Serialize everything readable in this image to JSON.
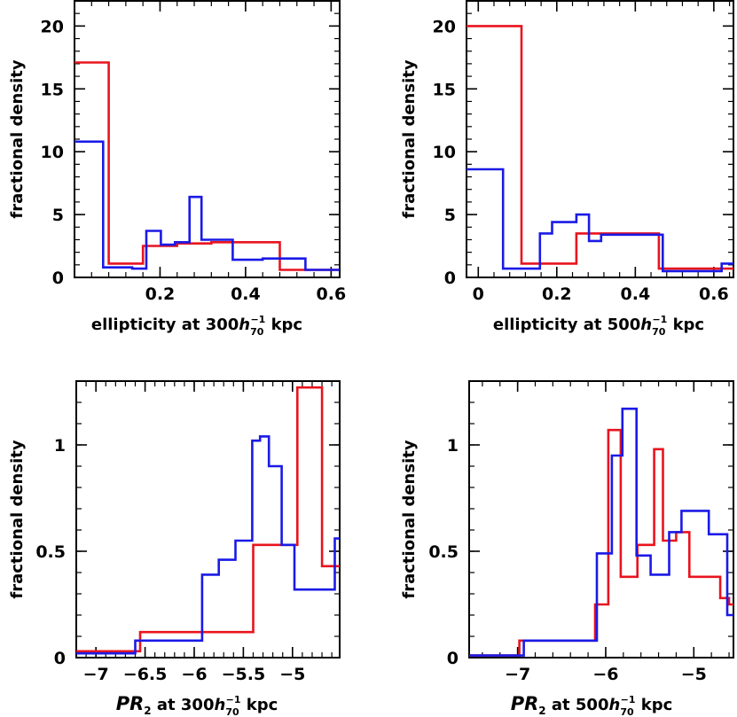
{
  "chart_data": [
    {
      "id": "ellip300",
      "type": "histogram-step",
      "xlabel_parts": [
        "ellipticity at 300",
        "h",
        "70",
        "−1",
        " kpc"
      ],
      "ylabel": "fractional density",
      "xlim": [
        0.0,
        0.62
      ],
      "ylim": [
        0,
        22
      ],
      "xticks": [
        0.2,
        0.4,
        0.6
      ],
      "xtick_labels": [
        "0.2",
        "0.4",
        "0.6"
      ],
      "yticks": [
        0,
        5,
        10,
        15,
        20
      ],
      "ytick_labels": [
        "0",
        "5",
        "10",
        "15",
        "20"
      ],
      "series": [
        {
          "color": "#e8141e",
          "edges": [
            0.0,
            0.08,
            0.16,
            0.24,
            0.32,
            0.4,
            0.48,
            0.62
          ],
          "values": [
            17.1,
            1.1,
            2.5,
            2.7,
            2.8,
            2.8,
            0.6
          ]
        },
        {
          "color": "#1a1ae6",
          "edges": [
            0.0,
            0.067,
            0.135,
            0.168,
            0.202,
            0.235,
            0.269,
            0.297,
            0.37,
            0.44,
            0.54,
            0.62
          ],
          "values": [
            10.8,
            0.8,
            0.7,
            3.7,
            2.6,
            2.8,
            6.4,
            3.0,
            1.4,
            1.5,
            0.6
          ]
        }
      ]
    },
    {
      "id": "ellip500",
      "type": "histogram-step",
      "xlabel_parts": [
        "ellipticity at 500",
        "h",
        "70",
        "−1",
        " kpc"
      ],
      "ylabel": "fractional density",
      "xlim": [
        -0.03,
        0.65
      ],
      "ylim": [
        0,
        22
      ],
      "xticks": [
        0,
        0.2,
        0.4,
        0.6
      ],
      "xtick_labels": [
        "0",
        "0.2",
        "0.4",
        "0.6"
      ],
      "yticks": [
        0,
        5,
        10,
        15,
        20
      ],
      "ytick_labels": [
        "0",
        "5",
        "10",
        "15",
        "20"
      ],
      "series": [
        {
          "color": "#e8141e",
          "edges": [
            -0.03,
            0.11,
            0.25,
            0.46,
            0.65
          ],
          "values": [
            20.0,
            1.1,
            3.5,
            0.7
          ]
        },
        {
          "color": "#1a1ae6",
          "edges": [
            -0.03,
            0.063,
            0.157,
            0.188,
            0.22,
            0.25,
            0.282,
            0.313,
            0.47,
            0.62,
            0.65
          ],
          "values": [
            8.6,
            0.7,
            3.5,
            4.4,
            4.4,
            5.0,
            2.9,
            3.4,
            0.5,
            1.1
          ]
        }
      ]
    },
    {
      "id": "pr300",
      "type": "histogram-step",
      "xlabel_parts": [
        "PR",
        "2",
        " at 300",
        "h",
        "70",
        "−1",
        " kpc"
      ],
      "ylabel": "fractional density",
      "xlim": [
        -7.2,
        -4.52
      ],
      "ylim": [
        0,
        1.3
      ],
      "xticks": [
        -7,
        -6.5,
        -6,
        -5.5,
        -5
      ],
      "xtick_labels": [
        "−7",
        "−6.5",
        "−6",
        "−5.5",
        "−5"
      ],
      "yticks": [
        0,
        0.5,
        1
      ],
      "ytick_labels": [
        "0",
        "0.5",
        "1"
      ],
      "series": [
        {
          "color": "#e8141e",
          "edges": [
            -7.2,
            -6.55,
            -5.4,
            -5.2,
            -4.95,
            -4.7,
            -4.52
          ],
          "values": [
            0.03,
            0.12,
            0.53,
            0.53,
            1.27,
            0.43
          ]
        },
        {
          "color": "#1a1ae6",
          "edges": [
            -7.2,
            -6.6,
            -5.92,
            -5.75,
            -5.58,
            -5.41,
            -5.33,
            -5.24,
            -5.11,
            -4.98,
            -4.77,
            -4.57,
            -4.52
          ],
          "values": [
            0.02,
            0.08,
            0.39,
            0.46,
            0.55,
            1.02,
            1.04,
            0.9,
            0.53,
            0.32,
            0.32,
            0.56
          ]
        }
      ]
    },
    {
      "id": "pr500",
      "type": "histogram-step",
      "xlabel_parts": [
        "PR",
        "2",
        " at 500",
        "h",
        "70",
        "−1",
        " kpc"
      ],
      "ylabel": "fractional density",
      "xlim": [
        -7.55,
        -4.55
      ],
      "ylim": [
        0,
        1.3
      ],
      "xticks": [
        -7,
        -6,
        -5
      ],
      "xtick_labels": [
        "−7",
        "−6",
        "−5"
      ],
      "yticks": [
        0,
        0.5,
        1
      ],
      "ytick_labels": [
        "0",
        "0.5",
        "1"
      ],
      "series": [
        {
          "color": "#e8141e",
          "edges": [
            -7.55,
            -6.98,
            -6.12,
            -5.97,
            -5.83,
            -5.64,
            -5.45,
            -5.35,
            -5.2,
            -5.05,
            -4.7,
            -4.6,
            -4.55
          ],
          "values": [
            0.01,
            0.08,
            0.25,
            1.07,
            0.38,
            0.53,
            0.98,
            0.55,
            0.59,
            0.38,
            0.28,
            0.25
          ]
        },
        {
          "color": "#1a1ae6",
          "edges": [
            -7.55,
            -6.93,
            -6.1,
            -5.93,
            -5.81,
            -5.65,
            -5.49,
            -5.28,
            -5.14,
            -4.83,
            -4.62,
            -4.55
          ],
          "values": [
            0.01,
            0.08,
            0.49,
            0.95,
            1.17,
            0.48,
            0.39,
            0.59,
            0.69,
            0.58,
            0.2
          ]
        }
      ]
    }
  ]
}
